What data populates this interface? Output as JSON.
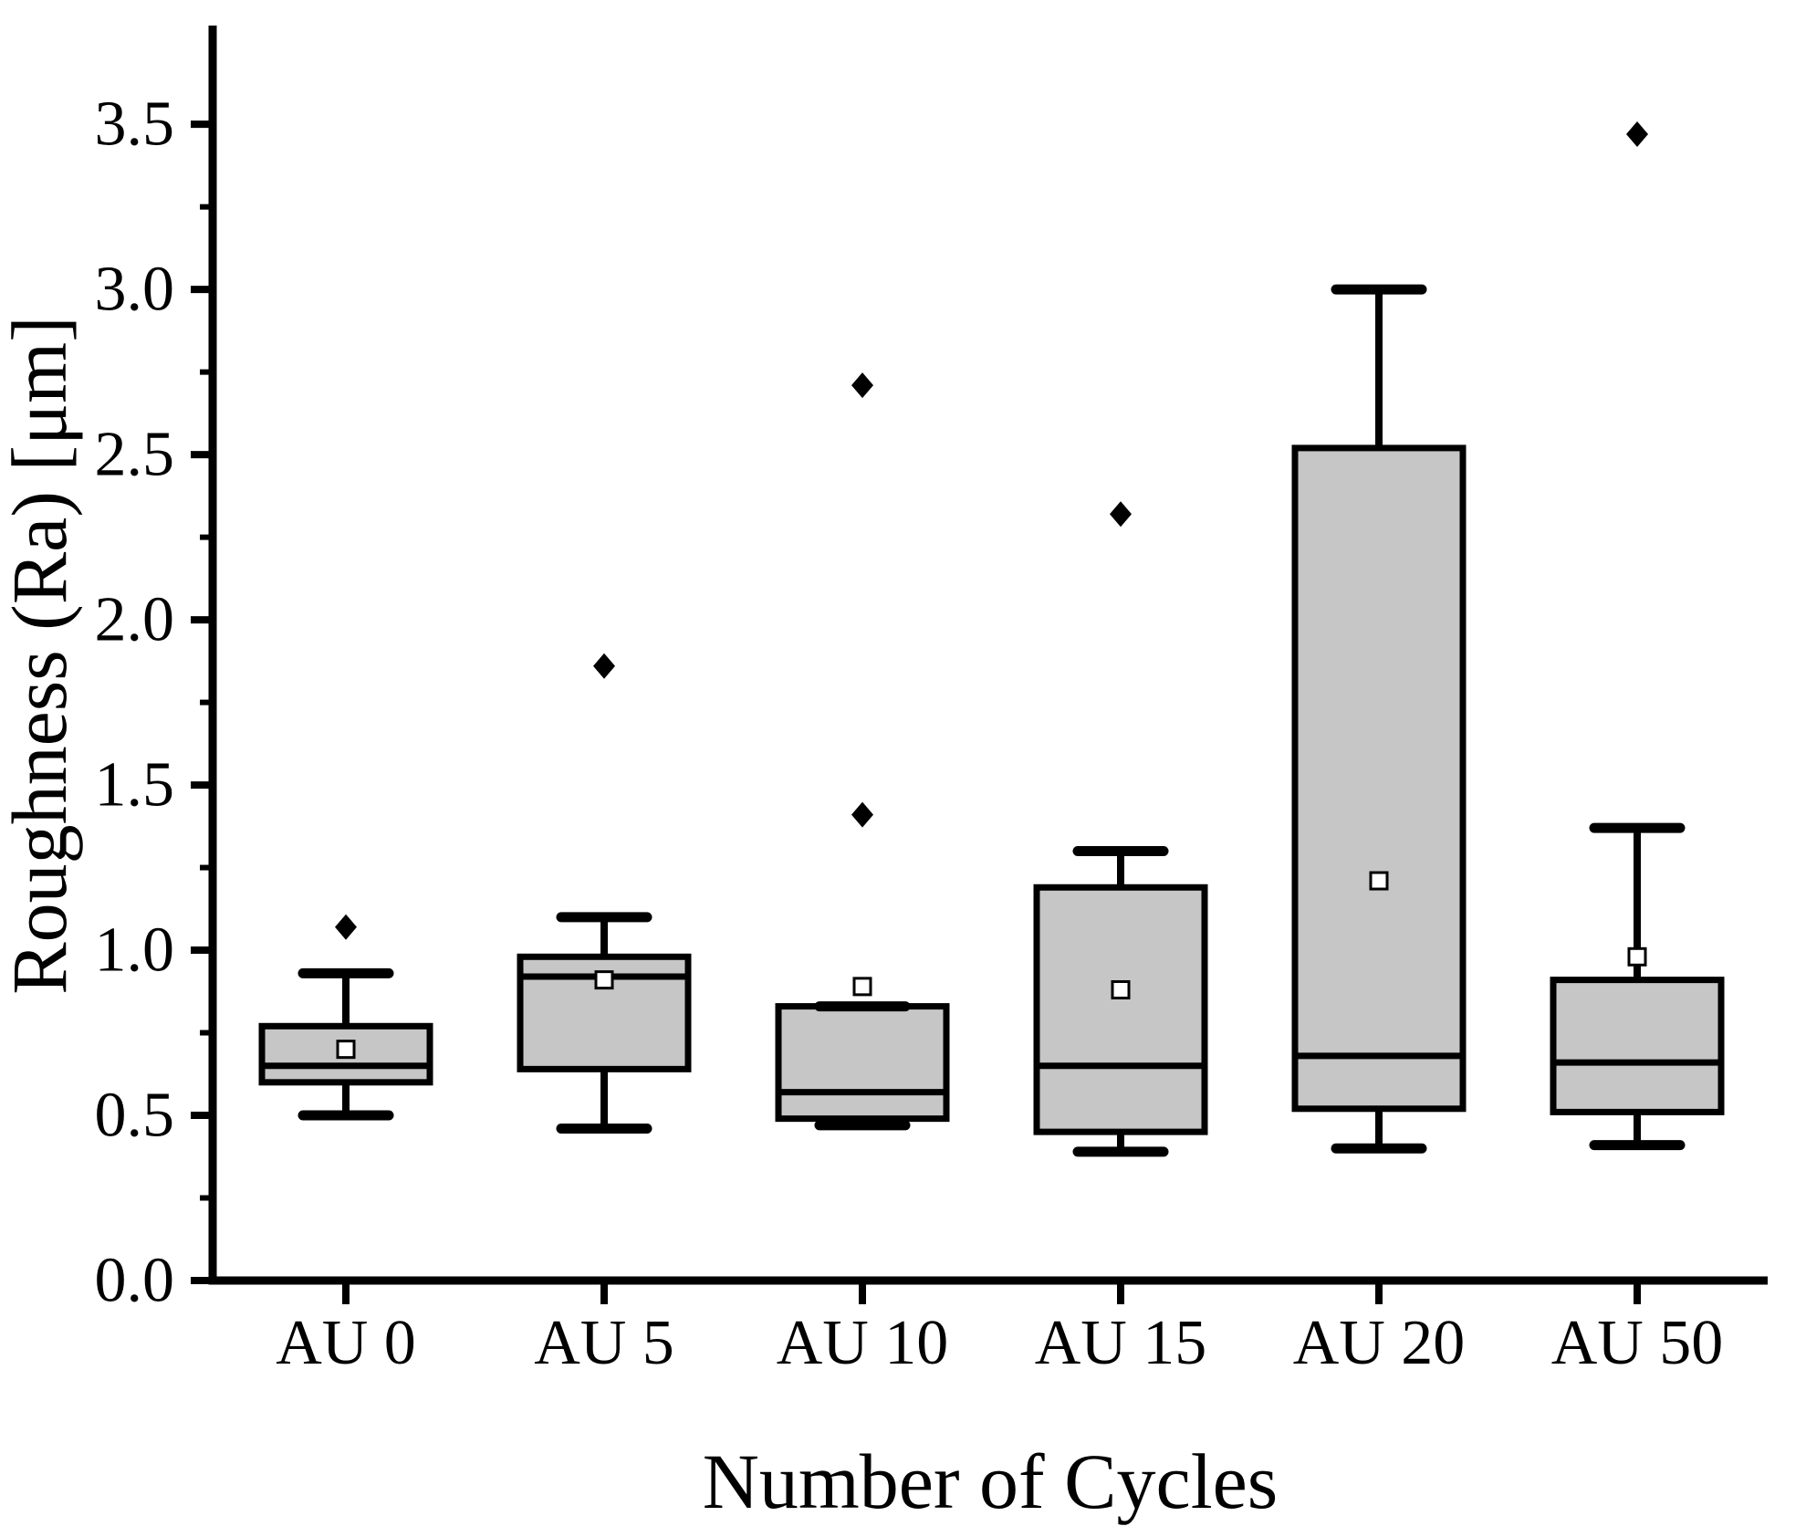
{
  "figure": {
    "background": "#ffffff",
    "ink": "#000000",
    "box_fill": "#c6c6c6",
    "mean_marker_fill": "#ffffff"
  },
  "chart_data": {
    "type": "box",
    "title": "",
    "xlabel": "Number of Cycles",
    "ylabel": "Roughness (Ra) [μm]",
    "ylim": [
      0,
      3.785
    ],
    "grid": false,
    "legend": null,
    "y_major_ticks": [
      0.0,
      0.5,
      1.0,
      1.5,
      2.0,
      2.5,
      3.0,
      3.5
    ],
    "y_tick_labels": [
      "0.0",
      "0.5",
      "1.0",
      "1.5",
      "2.0",
      "2.5",
      "3.0",
      "3.5"
    ],
    "y_minor_ticks": [
      0.25,
      0.75,
      1.25,
      1.75,
      2.25,
      2.75,
      3.25
    ],
    "categories": [
      "AU 0",
      "AU 5",
      "AU 10",
      "AU 15",
      "AU 20",
      "AU 50"
    ],
    "series": [
      {
        "category": "AU 0",
        "whisker_low": 0.5,
        "q1": 0.6,
        "median": 0.65,
        "q3": 0.77,
        "whisker_high": 0.93,
        "mean": 0.7,
        "outliers": [
          1.07
        ]
      },
      {
        "category": "AU 5",
        "whisker_low": 0.46,
        "q1": 0.64,
        "median": 0.92,
        "q3": 0.98,
        "whisker_high": 1.1,
        "mean": 0.91,
        "outliers": [
          1.86
        ]
      },
      {
        "category": "AU 10",
        "whisker_low": 0.47,
        "q1": 0.49,
        "median": 0.57,
        "q3": 0.83,
        "whisker_high": 0.83,
        "mean": 0.89,
        "outliers": [
          1.41,
          2.71
        ]
      },
      {
        "category": "AU 15",
        "whisker_low": 0.39,
        "q1": 0.45,
        "median": 0.65,
        "q3": 1.19,
        "whisker_high": 1.3,
        "mean": 0.88,
        "outliers": [
          2.32
        ]
      },
      {
        "category": "AU 20",
        "whisker_low": 0.4,
        "q1": 0.52,
        "median": 0.68,
        "q3": 2.52,
        "whisker_high": 3.0,
        "mean": 1.21,
        "outliers": []
      },
      {
        "category": "AU 50",
        "whisker_low": 0.41,
        "q1": 0.51,
        "median": 0.66,
        "q3": 0.91,
        "whisker_high": 1.37,
        "mean": 0.98,
        "outliers": [
          3.47
        ]
      }
    ]
  }
}
